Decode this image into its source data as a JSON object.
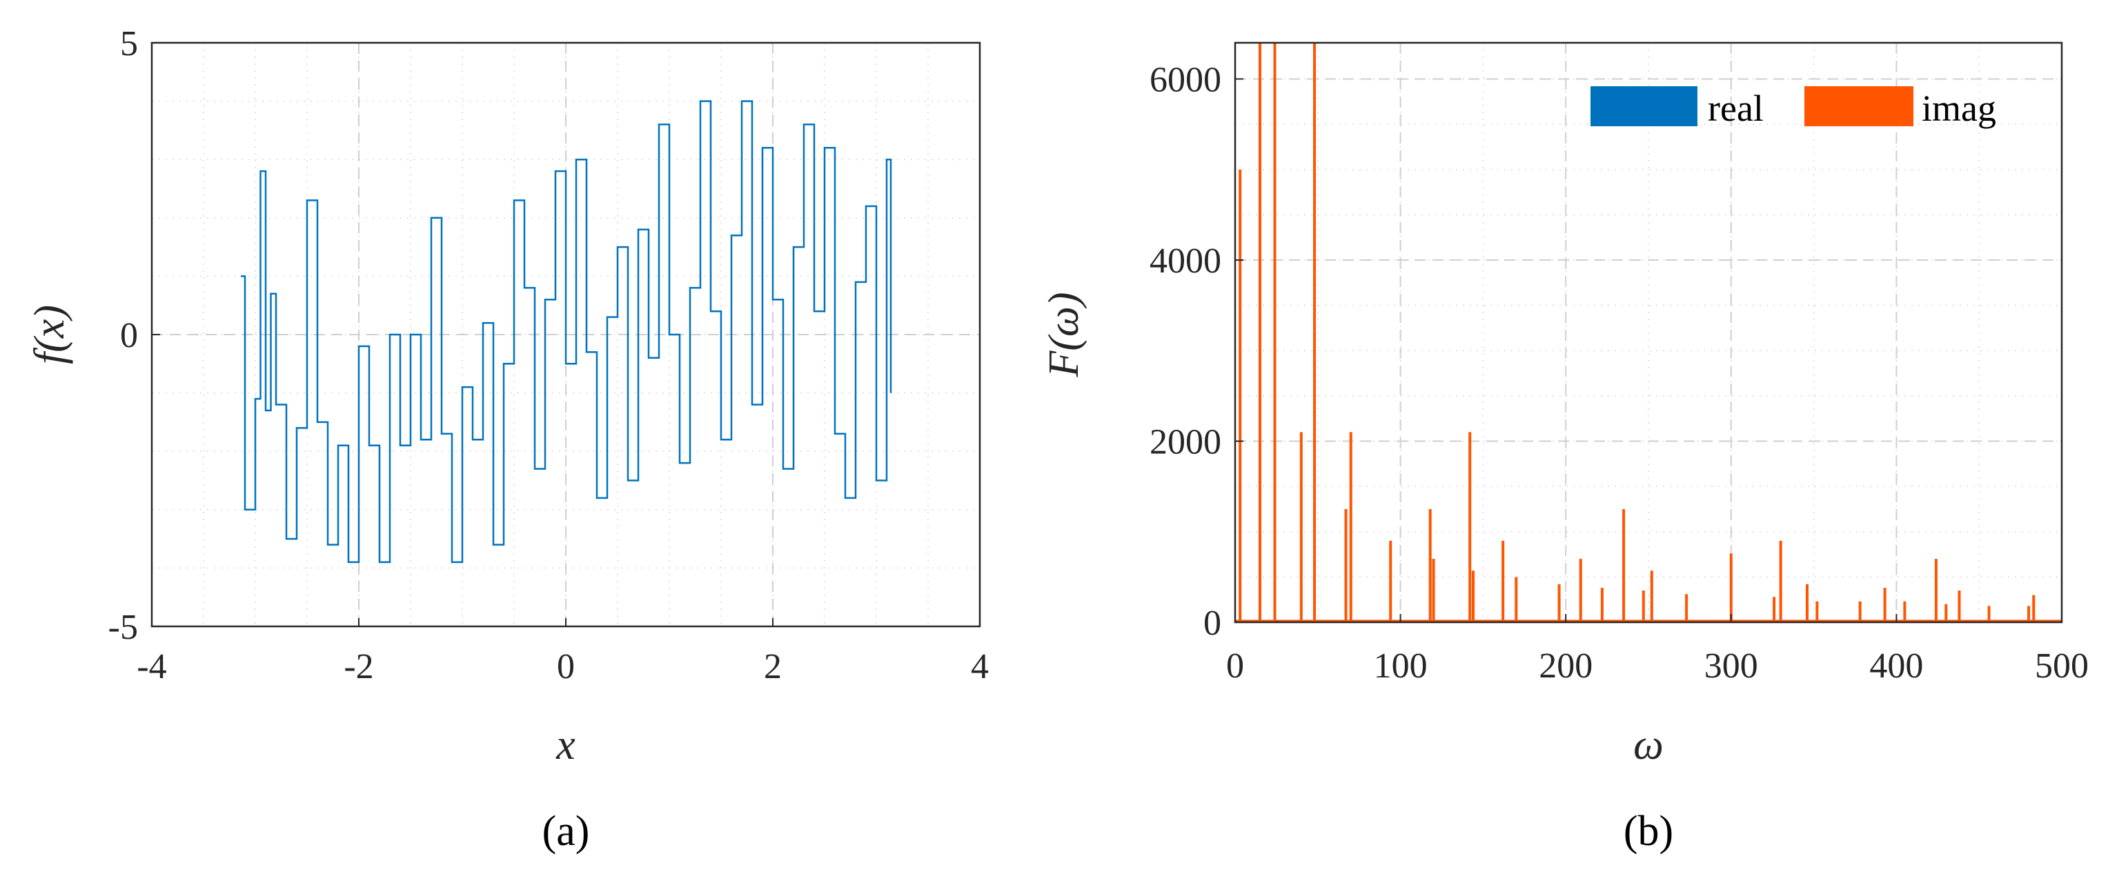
{
  "chart_data": [
    {
      "id": "a",
      "type": "line",
      "panel_label": "(a)",
      "xlabel": "x",
      "ylabel": "f(x)",
      "xlim": [
        -4,
        4
      ],
      "ylim": [
        -5,
        5
      ],
      "xticks": [
        -4,
        -2,
        0,
        2,
        4
      ],
      "yticks": [
        -5,
        0,
        5
      ],
      "xtick_labels": [
        "-4",
        "-2",
        "0",
        "2",
        "4"
      ],
      "ytick_labels": [
        "-5",
        "0",
        "5"
      ],
      "grid": true,
      "color": "#0072BD",
      "series": [
        {
          "description_of_shape": "quantized sine-like step signal",
          "x": [
            -3.14,
            -3.1,
            -3.0,
            -2.95,
            -2.9,
            -2.85,
            -2.8,
            -2.7,
            -2.6,
            -2.5,
            -2.4,
            -2.3,
            -2.2,
            -2.1,
            -2.0,
            -1.9,
            -1.8,
            -1.7,
            -1.6,
            -1.5,
            -1.4,
            -1.3,
            -1.2,
            -1.1,
            -1.0,
            -0.9,
            -0.8,
            -0.7,
            -0.6,
            -0.5,
            -0.4,
            -0.3,
            -0.2,
            -0.1,
            0.0,
            0.1,
            0.2,
            0.3,
            0.4,
            0.5,
            0.6,
            0.7,
            0.8,
            0.9,
            1.0,
            1.1,
            1.2,
            1.3,
            1.4,
            1.5,
            1.6,
            1.7,
            1.8,
            1.9,
            2.0,
            2.1,
            2.2,
            2.3,
            2.4,
            2.5,
            2.6,
            2.7,
            2.8,
            2.9,
            3.0,
            3.1,
            3.14
          ],
          "y": [
            1.0,
            -3.0,
            -1.1,
            2.8,
            -1.3,
            0.7,
            -1.2,
            -3.5,
            -1.6,
            2.3,
            -1.5,
            -3.6,
            -1.9,
            -3.9,
            -0.2,
            -1.9,
            -3.9,
            0.0,
            -1.9,
            0.0,
            -1.8,
            2.0,
            -1.7,
            -3.9,
            -0.9,
            -1.8,
            0.2,
            -3.6,
            -0.5,
            2.3,
            0.8,
            -2.3,
            0.6,
            2.8,
            -0.5,
            3.0,
            -0.3,
            -2.8,
            0.3,
            1.5,
            -2.5,
            1.8,
            -0.4,
            3.6,
            0.0,
            -2.2,
            0.8,
            4.0,
            0.4,
            -1.8,
            1.7,
            4.0,
            -1.2,
            3.2,
            0.6,
            -2.3,
            1.5,
            3.6,
            0.4,
            3.2,
            -1.7,
            -2.8,
            0.9,
            2.2,
            -2.5,
            3.0,
            -1.0
          ]
        }
      ]
    },
    {
      "id": "b",
      "type": "bar",
      "panel_label": "(b)",
      "xlabel": "ω",
      "ylabel": "F(ω)",
      "xlim": [
        0,
        500
      ],
      "ylim": [
        0,
        6400
      ],
      "xticks": [
        0,
        100,
        200,
        300,
        400,
        500
      ],
      "yticks": [
        0,
        2000,
        4000,
        6000
      ],
      "xtick_labels": [
        "0",
        "100",
        "200",
        "300",
        "400",
        "500"
      ],
      "ytick_labels": [
        "0",
        "2000",
        "4000",
        "6000"
      ],
      "grid": true,
      "legend": {
        "placement": "top-right",
        "entries": [
          {
            "name": "real",
            "color": "#0072BD"
          },
          {
            "name": "imag",
            "color": "#FF5500"
          }
        ]
      },
      "series": [
        {
          "name": "real",
          "color": "#0072BD",
          "x": [
            1,
            15,
            25,
            48,
            142,
            235,
            330
          ],
          "values": [
            10,
            15,
            15,
            15,
            12,
            10,
            10
          ]
        },
        {
          "name": "imag",
          "color": "#FF5500",
          "x": [
            3,
            15,
            24,
            40,
            48,
            67,
            70,
            94,
            118,
            120,
            142,
            144,
            162,
            170,
            196,
            209,
            222,
            235,
            247,
            252,
            273,
            300,
            326,
            330,
            346,
            352,
            378,
            393,
            405,
            424,
            430,
            438,
            456,
            480,
            483
          ],
          "values": [
            5000,
            6400,
            6400,
            2100,
            6400,
            1250,
            2100,
            900,
            1250,
            700,
            2100,
            570,
            900,
            500,
            420,
            700,
            380,
            1250,
            350,
            570,
            310,
            760,
            280,
            900,
            420,
            230,
            230,
            380,
            230,
            700,
            200,
            350,
            180,
            180,
            300
          ]
        }
      ]
    }
  ]
}
